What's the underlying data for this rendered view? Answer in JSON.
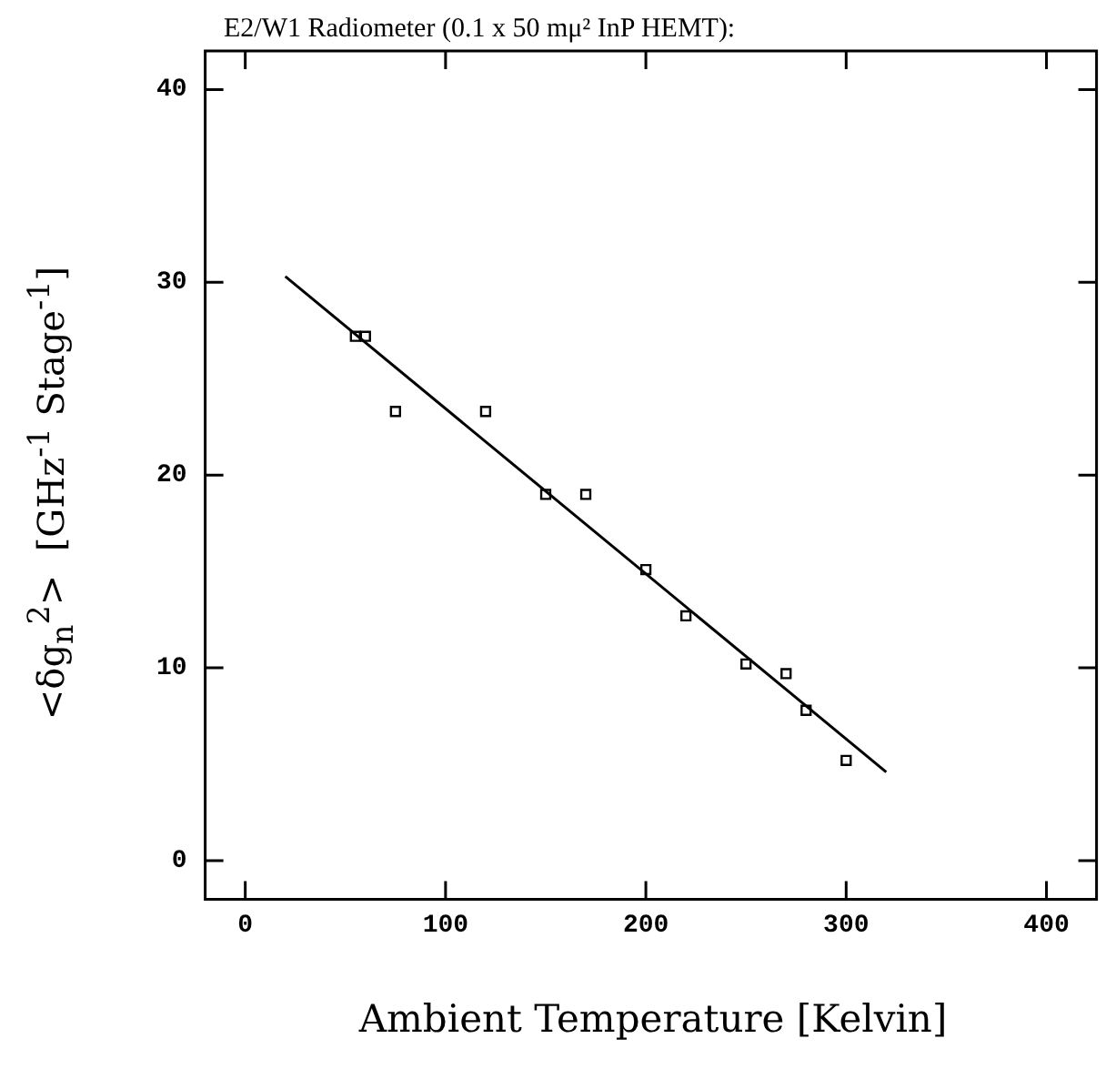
{
  "chart_data": {
    "type": "scatter",
    "title": "E2/W1 Radiometer (0.1 x 50 mμ² InP HEMT):",
    "xlabel": "Ambient Temperature [Kelvin]",
    "ylabel": "<δg$_{n}$$^{2}$>  [GHz$^{-1}$ Stage$^{-1}$]",
    "xlim": [
      -20,
      425
    ],
    "ylim": [
      -2,
      42
    ],
    "xticks": [
      0,
      100,
      200,
      300,
      400
    ],
    "yticks": [
      0,
      10,
      20,
      30,
      40
    ],
    "grid": false,
    "legend": false,
    "series": [
      {
        "type": "scatter",
        "color": "#000000",
        "marker": "square",
        "x": [
          55,
          60,
          75,
          120,
          150,
          170,
          200,
          220,
          250,
          270,
          280,
          300
        ],
        "values": [
          27.2,
          27.2,
          23.3,
          23.3,
          19.0,
          19.0,
          15.1,
          12.7,
          10.2,
          9.7,
          7.8,
          5.2
        ]
      },
      {
        "type": "line",
        "color": "#000000",
        "marker": "none",
        "line_style": "solid",
        "x": [
          20,
          320
        ],
        "values": [
          30.3,
          4.6
        ]
      }
    ]
  }
}
